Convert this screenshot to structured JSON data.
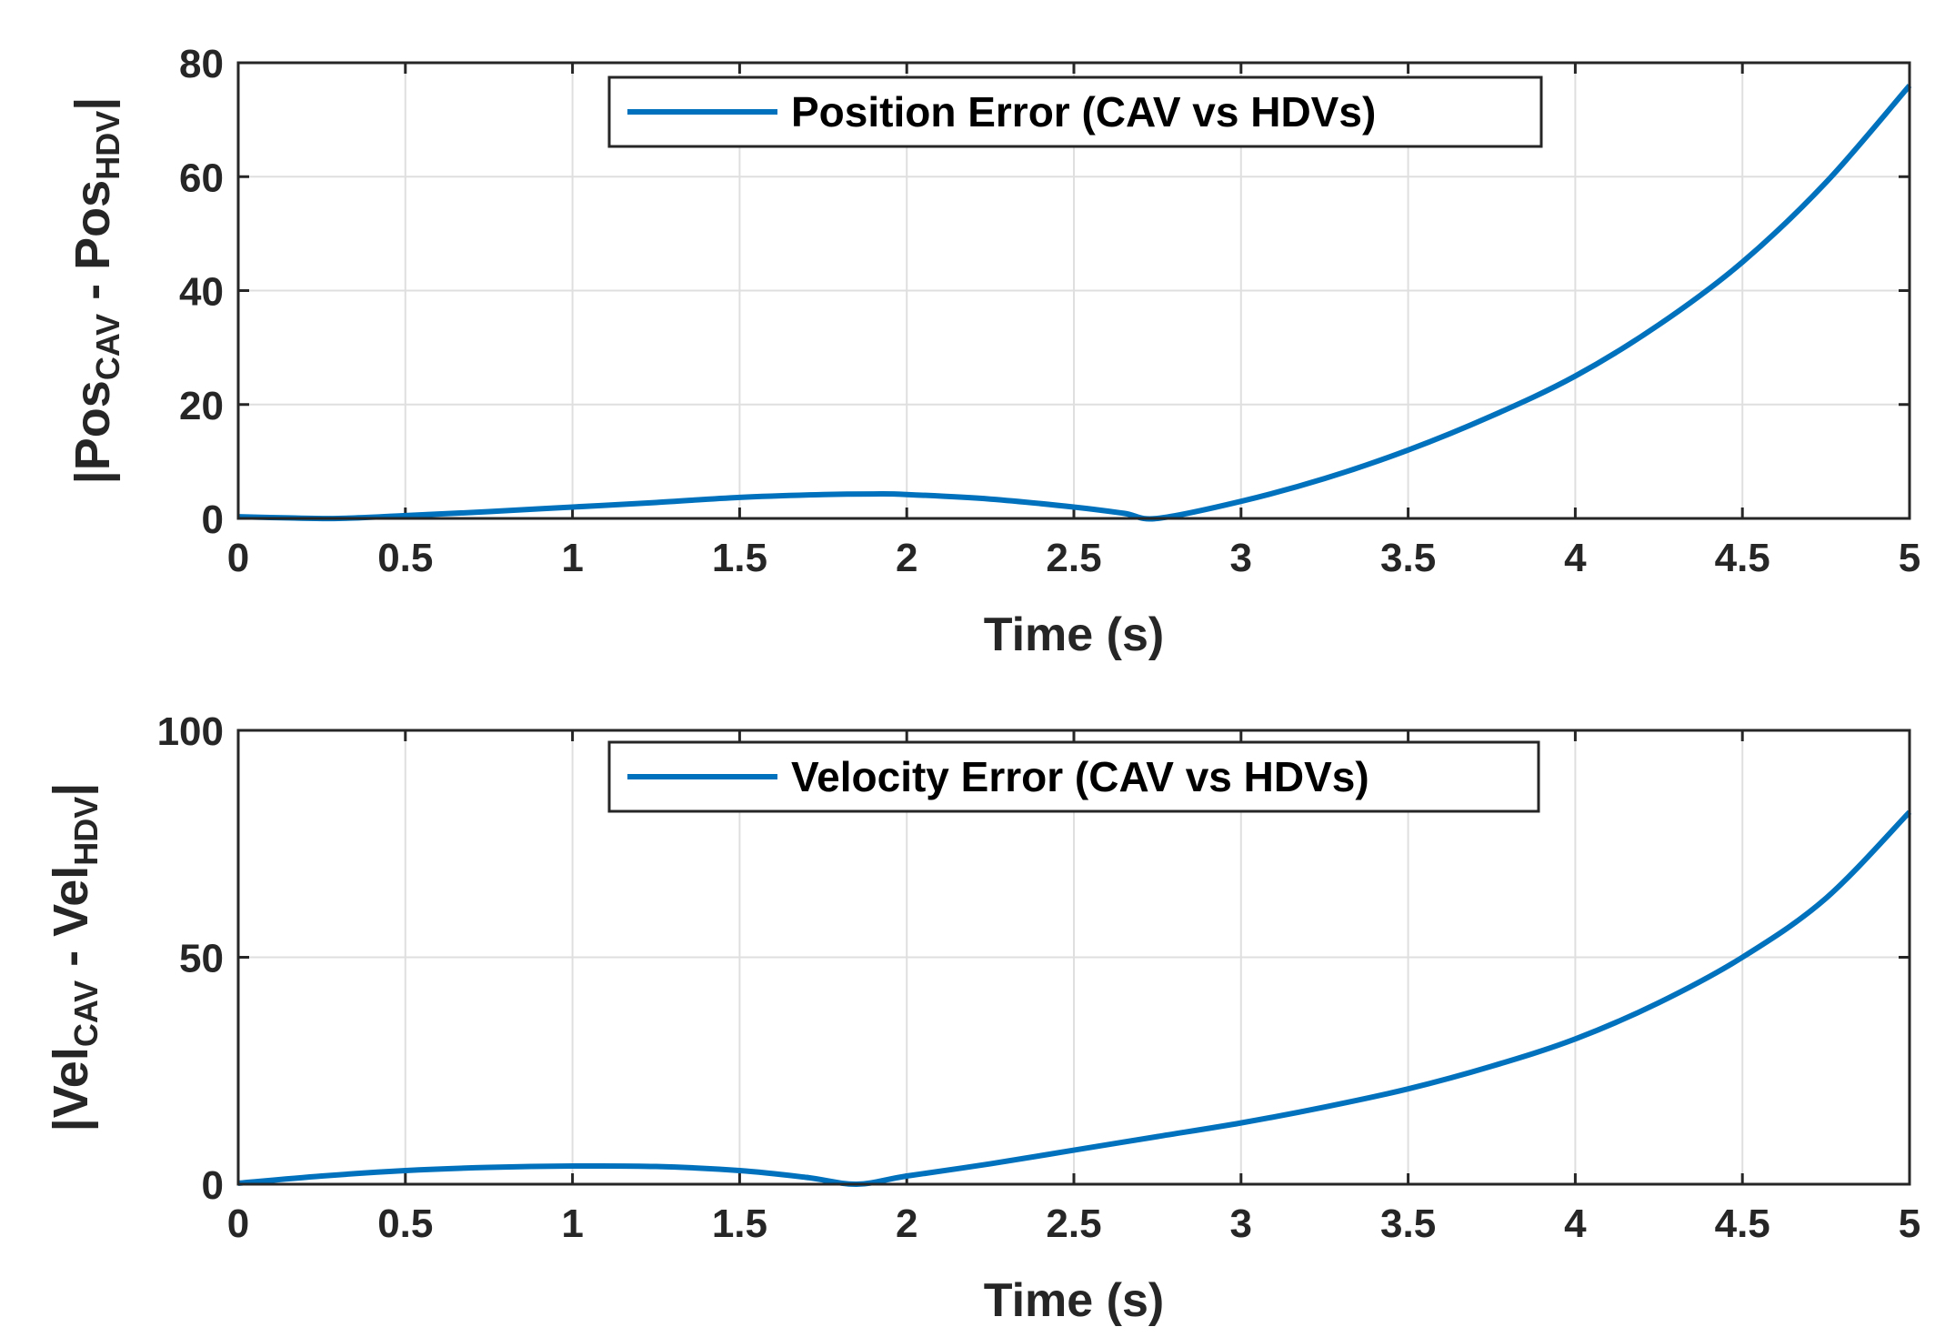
{
  "chart_data": [
    {
      "type": "line",
      "xlabel": "Time (s)",
      "ylabel": {
        "bar": "|",
        "a": "Pos",
        "a_sub": "CAV",
        "mid": " - ",
        "b": "Pos",
        "b_sub": "HDV",
        "end": "|"
      },
      "xlim": [
        0,
        5
      ],
      "ylim": [
        0,
        80
      ],
      "xticks": [
        "0",
        "0.5",
        "1",
        "1.5",
        "2",
        "2.5",
        "3",
        "3.5",
        "4",
        "4.5",
        "5"
      ],
      "yticks": [
        "0",
        "20",
        "40",
        "60",
        "80"
      ],
      "grid": true,
      "legend_position": "top-center",
      "series": [
        {
          "name": "Position Error (CAV vs HDVs)",
          "color": "#0072BD",
          "x": [
            0,
            0.15,
            0.3,
            0.5,
            0.75,
            1.0,
            1.25,
            1.5,
            1.75,
            1.9,
            2.0,
            2.25,
            2.5,
            2.65,
            2.75,
            3.0,
            3.25,
            3.5,
            3.75,
            4.0,
            4.25,
            4.5,
            4.75,
            5.0
          ],
          "y": [
            0.3,
            0.1,
            0.0,
            0.5,
            1.2,
            2.0,
            2.8,
            3.7,
            4.2,
            4.3,
            4.2,
            3.4,
            2.0,
            0.9,
            0.0,
            3.0,
            7.0,
            12.0,
            18.0,
            25.0,
            34.0,
            45.0,
            59.0,
            76.0
          ]
        }
      ]
    },
    {
      "type": "line",
      "xlabel": "Time (s)",
      "ylabel": {
        "bar": "|",
        "a": "Vel",
        "a_sub": "CAV",
        "mid": " - ",
        "b": "Vel",
        "b_sub": "HDV",
        "end": "|"
      },
      "xlim": [
        0,
        5
      ],
      "ylim": [
        0,
        100
      ],
      "xticks": [
        "0",
        "0.5",
        "1",
        "1.5",
        "2",
        "2.5",
        "3",
        "3.5",
        "4",
        "4.5",
        "5"
      ],
      "yticks": [
        "0",
        "50",
        "100"
      ],
      "grid": true,
      "legend_position": "top-center",
      "series": [
        {
          "name": "Velocity Error (CAV vs HDVs)",
          "color": "#0072BD",
          "x": [
            0,
            0.25,
            0.5,
            0.75,
            1.0,
            1.25,
            1.5,
            1.7,
            1.85,
            2.0,
            2.25,
            2.5,
            2.75,
            3.0,
            3.25,
            3.5,
            3.75,
            4.0,
            4.25,
            4.5,
            4.75,
            5.0
          ],
          "y": [
            0.2,
            1.8,
            3.0,
            3.7,
            4.0,
            3.9,
            3.0,
            1.5,
            0.0,
            1.8,
            4.5,
            7.5,
            10.5,
            13.5,
            17.0,
            21.0,
            26.0,
            32.0,
            40.0,
            50.0,
            63.0,
            82.0
          ]
        }
      ]
    }
  ]
}
